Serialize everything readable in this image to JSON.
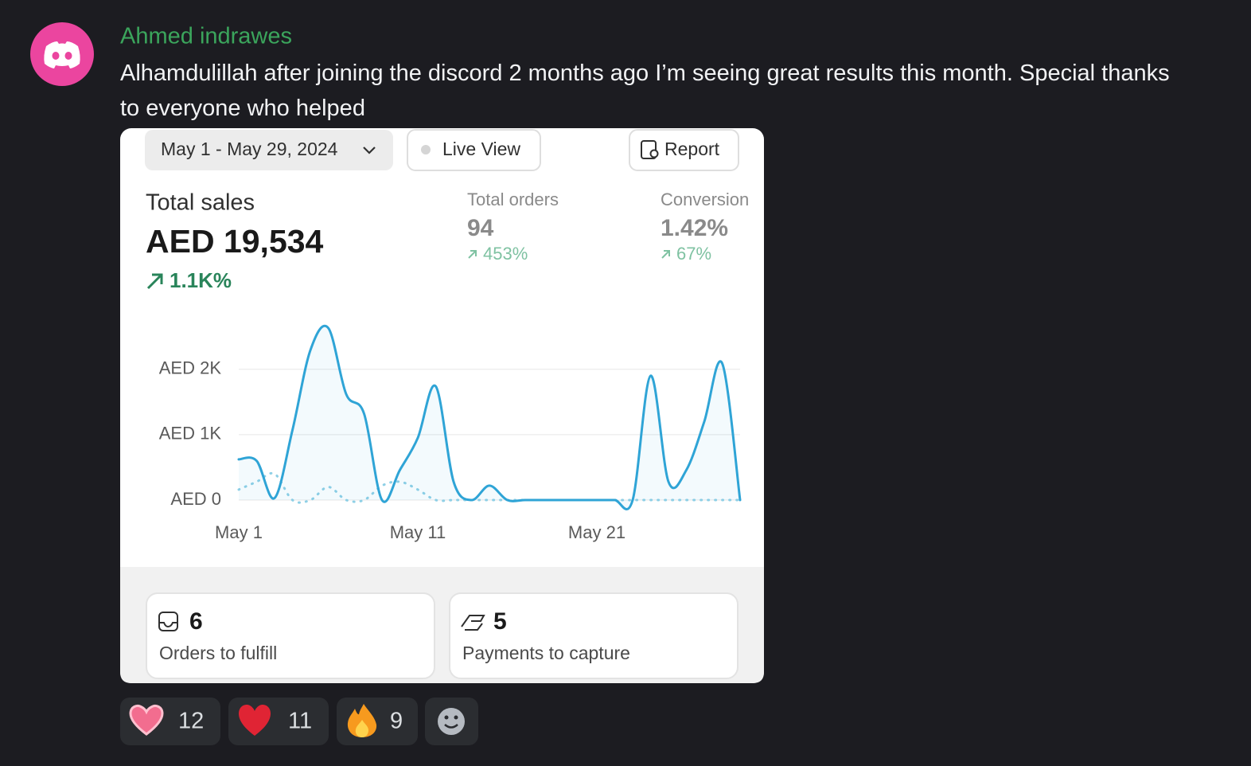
{
  "message": {
    "author": "Ahmed indrawes",
    "text": "Alhamdulillah after joining the discord 2 months ago I’m seeing great results this month. Special thanks to everyone who helped"
  },
  "dashboard": {
    "date_range": "May 1 - May 29, 2024",
    "live_view": "Live View",
    "report": "Report",
    "total_sales": {
      "label": "Total sales",
      "value": "AED 19,534",
      "change": "1.1K%"
    },
    "total_orders": {
      "label": "Total orders",
      "value": "94",
      "change": "453%"
    },
    "conversion": {
      "label": "Conversion",
      "value": "1.42%",
      "change": "67%"
    },
    "cards": [
      {
        "count": "6",
        "label": "Orders to fulfill"
      },
      {
        "count": "5",
        "label": "Payments to capture"
      }
    ]
  },
  "chart_data": {
    "type": "line",
    "categories": [
      "May 1",
      null,
      null,
      null,
      null,
      null,
      null,
      null,
      null,
      null,
      "May 11",
      null,
      null,
      null,
      null,
      null,
      null,
      null,
      null,
      null,
      "May 21",
      null,
      null,
      null,
      null,
      null,
      null,
      null,
      null
    ],
    "series": [
      {
        "color": "#2fa4d6",
        "values": [
          622,
          600,
          30,
          1070,
          2290,
          2630,
          1620,
          1320,
          0,
          460,
          950,
          1740,
          280,
          0,
          220,
          0,
          0,
          0,
          0,
          0,
          0,
          0,
          0,
          1900,
          280,
          460,
          1200,
          2090,
          0
        ]
      },
      {
        "color": "#8fd0e6",
        "values": [
          160,
          280,
          400,
          0,
          0,
          200,
          0,
          0,
          220,
          280,
          160,
          0,
          0,
          0,
          0,
          0,
          0,
          0,
          0,
          0,
          0,
          0,
          0,
          0,
          0,
          0,
          0,
          0,
          0
        ]
      }
    ],
    "ylim": [
      0,
      2800
    ],
    "yticks": [
      {
        "value": 0,
        "label": "AED 0"
      },
      {
        "value": 1000,
        "label": "AED 1K"
      },
      {
        "value": 2000,
        "label": "AED 2K"
      }
    ],
    "grid": true
  },
  "reactions": [
    {
      "count": "12"
    },
    {
      "count": "11"
    },
    {
      "count": "9"
    }
  ]
}
